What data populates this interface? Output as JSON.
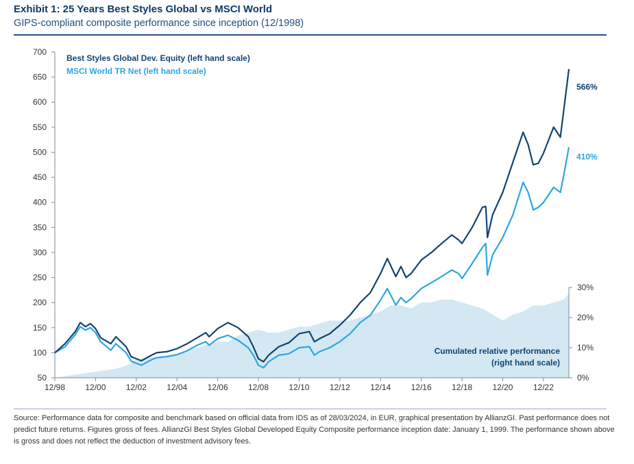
{
  "header": {
    "title": "Exhibit 1: 25 Years Best Styles Global vs MSCI World",
    "subtitle": "GIPS-compliant composite performance since inception (12/1998)"
  },
  "footer": {
    "source": "Source: Performance data for composite and benchmark based on official data from IDS as of 28/03/2024, in EUR, graphical presentation by AllianzGI. Past performance does not predict future returns. Figures gross of fees. AllianzGI Best Styles Global Developed Equity Composite performance inception date: January 1, 1999. The performance shown above is gross and does not reflect the deduction of investment advisory fees."
  },
  "chart_data": {
    "type": "line",
    "x_ticks": [
      "12/98",
      "12/00",
      "12/02",
      "12/04",
      "12/06",
      "12/08",
      "12/10",
      "12/12",
      "12/14",
      "12/16",
      "12/18",
      "12/20",
      "12/22"
    ],
    "y_left": {
      "min": 50,
      "max": 700,
      "ticks": [
        50,
        100,
        150,
        200,
        250,
        300,
        350,
        400,
        450,
        500,
        550,
        600,
        650,
        700
      ]
    },
    "y_right": {
      "min": 0,
      "max": 30,
      "ticks": [
        "0%",
        "10%",
        "20%",
        "30%"
      ],
      "tick_values": [
        0,
        10,
        20,
        30
      ]
    },
    "grid": false,
    "series": [
      {
        "name": "Best Styles Global Dev. Equity (left hand scale)",
        "axis": "left",
        "color": "#12436e",
        "end_label": "566%",
        "points": [
          [
            "1998-12",
            100
          ],
          [
            "1999-06",
            118
          ],
          [
            "1999-12",
            142
          ],
          [
            "2000-03",
            160
          ],
          [
            "2000-06",
            152
          ],
          [
            "2000-09",
            158
          ],
          [
            "2000-12",
            148
          ],
          [
            "2001-03",
            130
          ],
          [
            "2001-09",
            118
          ],
          [
            "2001-12",
            132
          ],
          [
            "2002-06",
            112
          ],
          [
            "2002-09",
            92
          ],
          [
            "2003-03",
            84
          ],
          [
            "2003-09",
            95
          ],
          [
            "2003-12",
            100
          ],
          [
            "2004-06",
            102
          ],
          [
            "2004-12",
            108
          ],
          [
            "2005-06",
            118
          ],
          [
            "2005-12",
            130
          ],
          [
            "2006-05",
            140
          ],
          [
            "2006-07",
            132
          ],
          [
            "2006-12",
            148
          ],
          [
            "2007-06",
            160
          ],
          [
            "2007-12",
            150
          ],
          [
            "2008-06",
            132
          ],
          [
            "2008-09",
            112
          ],
          [
            "2008-12",
            88
          ],
          [
            "2009-03",
            82
          ],
          [
            "2009-06",
            95
          ],
          [
            "2009-12",
            112
          ],
          [
            "2010-06",
            120
          ],
          [
            "2010-12",
            138
          ],
          [
            "2011-06",
            142
          ],
          [
            "2011-09",
            122
          ],
          [
            "2011-12",
            128
          ],
          [
            "2012-06",
            138
          ],
          [
            "2012-12",
            155
          ],
          [
            "2013-06",
            175
          ],
          [
            "2013-12",
            200
          ],
          [
            "2014-06",
            220
          ],
          [
            "2014-12",
            258
          ],
          [
            "2015-04",
            288
          ],
          [
            "2015-09",
            252
          ],
          [
            "2015-12",
            272
          ],
          [
            "2016-03",
            250
          ],
          [
            "2016-06",
            258
          ],
          [
            "2016-12",
            285
          ],
          [
            "2017-06",
            300
          ],
          [
            "2017-12",
            318
          ],
          [
            "2018-06",
            335
          ],
          [
            "2018-10",
            325
          ],
          [
            "2018-12",
            318
          ],
          [
            "2019-06",
            350
          ],
          [
            "2019-12",
            390
          ],
          [
            "2020-02",
            392
          ],
          [
            "2020-03",
            330
          ],
          [
            "2020-06",
            375
          ],
          [
            "2020-12",
            420
          ],
          [
            "2021-06",
            480
          ],
          [
            "2021-12",
            540
          ],
          [
            "2022-03",
            515
          ],
          [
            "2022-06",
            475
          ],
          [
            "2022-09",
            478
          ],
          [
            "2022-12",
            498
          ],
          [
            "2023-06",
            550
          ],
          [
            "2023-10",
            530
          ],
          [
            "2023-12",
            585
          ],
          [
            "2024-03",
            666
          ]
        ]
      },
      {
        "name": "MSCI World TR Net  (left hand scale)",
        "axis": "left",
        "color": "#2ca6de",
        "end_label": "410%",
        "points": [
          [
            "1998-12",
            100
          ],
          [
            "1999-06",
            112
          ],
          [
            "1999-12",
            136
          ],
          [
            "2000-03",
            152
          ],
          [
            "2000-06",
            145
          ],
          [
            "2000-09",
            150
          ],
          [
            "2000-12",
            140
          ],
          [
            "2001-03",
            122
          ],
          [
            "2001-09",
            105
          ],
          [
            "2001-12",
            118
          ],
          [
            "2002-06",
            100
          ],
          [
            "2002-09",
            83
          ],
          [
            "2003-03",
            75
          ],
          [
            "2003-09",
            86
          ],
          [
            "2003-12",
            90
          ],
          [
            "2004-06",
            92
          ],
          [
            "2004-12",
            96
          ],
          [
            "2005-06",
            104
          ],
          [
            "2005-12",
            115
          ],
          [
            "2006-05",
            122
          ],
          [
            "2006-07",
            115
          ],
          [
            "2006-12",
            128
          ],
          [
            "2007-06",
            135
          ],
          [
            "2007-12",
            125
          ],
          [
            "2008-06",
            110
          ],
          [
            "2008-09",
            95
          ],
          [
            "2008-12",
            75
          ],
          [
            "2009-03",
            70
          ],
          [
            "2009-06",
            82
          ],
          [
            "2009-12",
            95
          ],
          [
            "2010-06",
            98
          ],
          [
            "2010-12",
            110
          ],
          [
            "2011-06",
            112
          ],
          [
            "2011-09",
            95
          ],
          [
            "2011-12",
            102
          ],
          [
            "2012-06",
            110
          ],
          [
            "2012-12",
            122
          ],
          [
            "2013-06",
            138
          ],
          [
            "2013-12",
            160
          ],
          [
            "2014-06",
            175
          ],
          [
            "2014-12",
            205
          ],
          [
            "2015-04",
            228
          ],
          [
            "2015-09",
            195
          ],
          [
            "2015-12",
            210
          ],
          [
            "2016-03",
            200
          ],
          [
            "2016-06",
            208
          ],
          [
            "2016-12",
            228
          ],
          [
            "2017-06",
            240
          ],
          [
            "2017-12",
            252
          ],
          [
            "2018-06",
            265
          ],
          [
            "2018-10",
            258
          ],
          [
            "2018-12",
            248
          ],
          [
            "2019-06",
            278
          ],
          [
            "2019-12",
            310
          ],
          [
            "2020-02",
            318
          ],
          [
            "2020-03",
            255
          ],
          [
            "2020-06",
            295
          ],
          [
            "2020-12",
            330
          ],
          [
            "2021-06",
            375
          ],
          [
            "2021-12",
            440
          ],
          [
            "2022-03",
            420
          ],
          [
            "2022-06",
            385
          ],
          [
            "2022-09",
            390
          ],
          [
            "2022-12",
            400
          ],
          [
            "2023-06",
            430
          ],
          [
            "2023-10",
            420
          ],
          [
            "2023-12",
            455
          ],
          [
            "2024-03",
            510
          ]
        ]
      },
      {
        "name": "Cumulated relative performance (right hand scale)",
        "axis": "right",
        "type": "area",
        "color": "#d3e8f3",
        "points": [
          [
            "1998-12",
            0
          ],
          [
            "1999-12",
            1
          ],
          [
            "2000-12",
            2
          ],
          [
            "2001-12",
            3
          ],
          [
            "2002-06",
            4
          ],
          [
            "2002-12",
            6
          ],
          [
            "2003-12",
            7
          ],
          [
            "2004-12",
            8
          ],
          [
            "2005-06",
            9
          ],
          [
            "2005-12",
            10
          ],
          [
            "2006-06",
            11
          ],
          [
            "2006-12",
            12
          ],
          [
            "2007-06",
            12
          ],
          [
            "2007-12",
            14
          ],
          [
            "2008-06",
            15
          ],
          [
            "2008-12",
            16
          ],
          [
            "2009-06",
            15
          ],
          [
            "2009-12",
            15
          ],
          [
            "2010-06",
            16
          ],
          [
            "2010-12",
            17
          ],
          [
            "2011-06",
            17
          ],
          [
            "2011-12",
            18
          ],
          [
            "2012-06",
            19
          ],
          [
            "2012-12",
            19
          ],
          [
            "2013-06",
            19
          ],
          [
            "2013-12",
            20
          ],
          [
            "2014-06",
            21
          ],
          [
            "2014-12",
            22
          ],
          [
            "2015-06",
            24
          ],
          [
            "2015-12",
            24
          ],
          [
            "2016-06",
            23
          ],
          [
            "2016-12",
            25
          ],
          [
            "2017-06",
            25
          ],
          [
            "2017-12",
            26
          ],
          [
            "2018-06",
            26
          ],
          [
            "2018-12",
            25
          ],
          [
            "2019-06",
            24
          ],
          [
            "2019-12",
            23
          ],
          [
            "2020-06",
            21
          ],
          [
            "2020-12",
            19
          ],
          [
            "2021-06",
            21
          ],
          [
            "2021-12",
            22
          ],
          [
            "2022-06",
            24
          ],
          [
            "2022-12",
            24
          ],
          [
            "2023-06",
            25
          ],
          [
            "2023-12",
            26
          ],
          [
            "2024-03",
            28
          ]
        ]
      }
    ],
    "annotation": "Cumulated relative performance\n(right hand scale)"
  }
}
